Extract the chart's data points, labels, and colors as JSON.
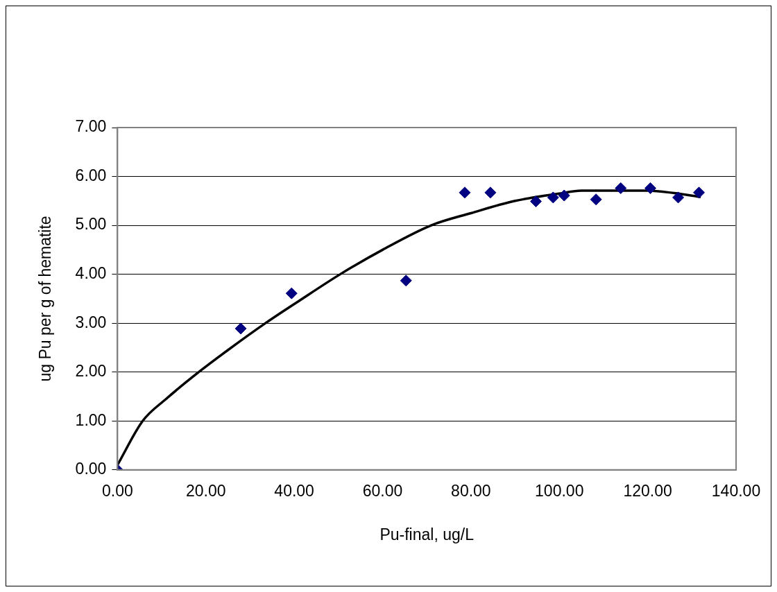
{
  "chart_data": {
    "type": "scatter",
    "xlabel": "Pu-final, ug/L",
    "ylabel": "ug Pu per g of hematite",
    "series": [
      {
        "type": "scatter",
        "color": "#000080",
        "marker": "diamond",
        "x": [
          0,
          27.9,
          39.4,
          65.3,
          78.6,
          84.4,
          94.7,
          98.6,
          101.1,
          108.3,
          113.9,
          120.6,
          126.9,
          131.6
        ],
        "values": [
          0,
          2.89,
          3.61,
          3.87,
          5.67,
          5.67,
          5.49,
          5.57,
          5.61,
          5.53,
          5.76,
          5.76,
          5.57,
          5.67
        ]
      },
      {
        "type": "line",
        "color": "#000000",
        "marker": "none",
        "x": [
          0,
          5.7,
          11,
          18.4,
          25,
          33.5,
          41,
          50.4,
          60,
          71,
          80,
          90,
          100,
          105,
          120,
          126,
          132
        ],
        "values": [
          0.1,
          1.0,
          1.45,
          2.0,
          2.45,
          3.0,
          3.45,
          4.0,
          4.5,
          5.0,
          5.25,
          5.5,
          5.65,
          5.71,
          5.71,
          5.66,
          5.58
        ]
      }
    ],
    "xlim": [
      0,
      140
    ],
    "xticks": [
      {
        "value": 0,
        "label": "0.00"
      },
      {
        "value": 20,
        "label": "20.00"
      },
      {
        "value": 40,
        "label": "40.00"
      },
      {
        "value": 60,
        "label": "60.00"
      },
      {
        "value": 80,
        "label": "80.00"
      },
      {
        "value": 100,
        "label": "100.00"
      },
      {
        "value": 120,
        "label": "120.00"
      },
      {
        "value": 140,
        "label": "140.00"
      }
    ],
    "ylim": [
      0,
      7
    ],
    "yticks": [
      {
        "value": 0,
        "label": "0.00"
      },
      {
        "value": 1,
        "label": "1.00"
      },
      {
        "value": 2,
        "label": "2.00"
      },
      {
        "value": 3,
        "label": "3.00"
      },
      {
        "value": 4,
        "label": "4.00"
      },
      {
        "value": 5,
        "label": "5.00"
      },
      {
        "value": 6,
        "label": "6.00"
      },
      {
        "value": 7,
        "label": "7.00"
      }
    ],
    "grid": "y",
    "legend": false
  }
}
